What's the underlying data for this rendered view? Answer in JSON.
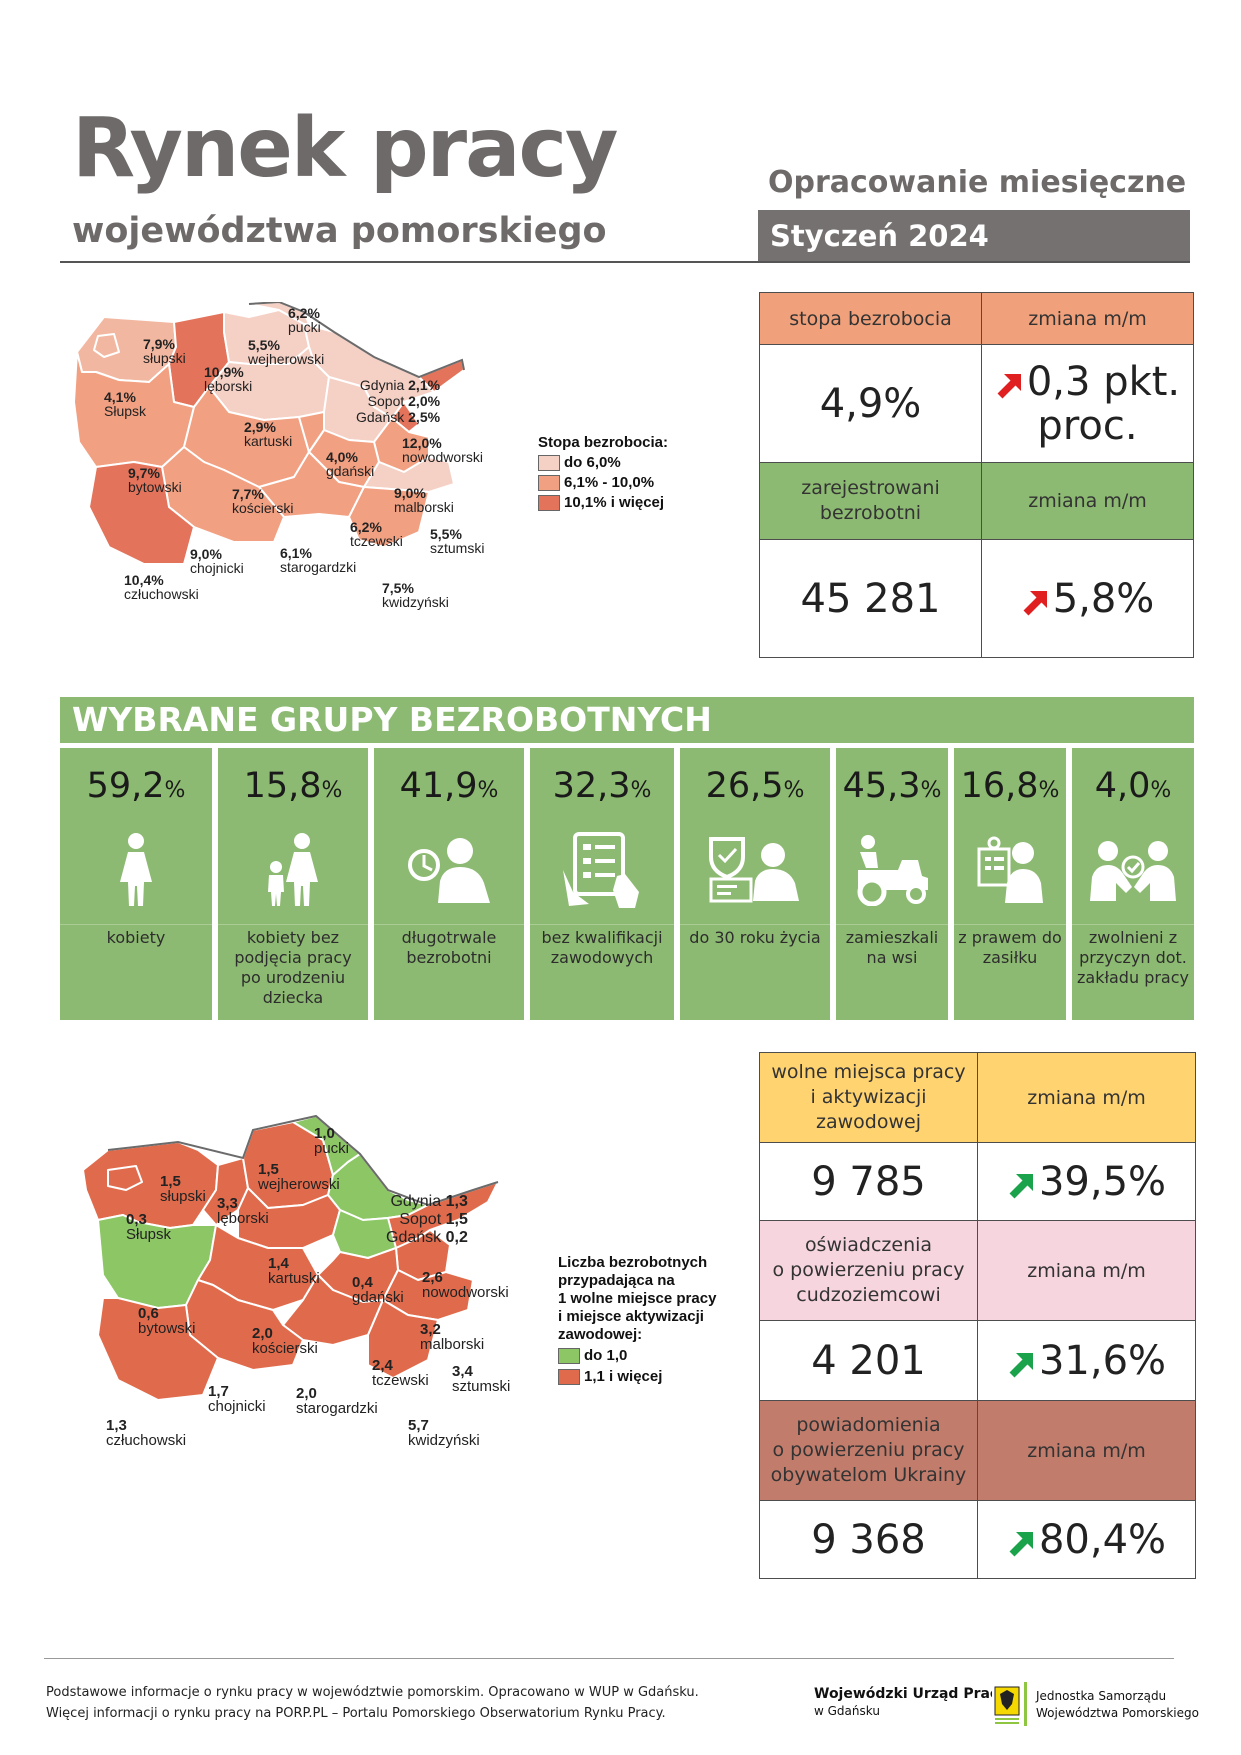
{
  "header": {
    "title": "Rynek pracy",
    "subtitle": "województwa pomorskiego",
    "report_type": "Opracowanie miesięczne",
    "period": "Styczeń 2024"
  },
  "colors": {
    "green": "#8dba72",
    "salmon": "#f0a07a",
    "grey": "#767171",
    "yellow": "#ffd370",
    "pink": "#f6d5df",
    "brown": "#c17c6c",
    "red_arrow": "#e02020",
    "green_arrow": "#1aa34a"
  },
  "kpi_top": {
    "rate_label": "stopa bezrobocia",
    "rate_value": "4,9%",
    "change_label": "zmiana m/m",
    "rate_change_line1": "0,3 pkt.",
    "rate_change_line2": "proc.",
    "registered_label_1": "zarejestrowani",
    "registered_label_2": "bezrobotni",
    "registered_value": "45 281",
    "registered_change": "5,8%"
  },
  "map1": {
    "districts": [
      {
        "value": "6,2%",
        "name": "pucki"
      },
      {
        "value": "7,9%",
        "name": "słupski"
      },
      {
        "value": "5,5%",
        "name": "wejherowski"
      },
      {
        "value": "10,9%",
        "name": "lęborski"
      },
      {
        "value": "4,1%",
        "name": "Słupsk"
      },
      {
        "value": "2,9%",
        "name": "kartuski"
      },
      {
        "value": "9,7%",
        "name": "bytowski"
      },
      {
        "value": "4,0%",
        "name": "gdański"
      },
      {
        "value": "12,0%",
        "name": "nowodworski"
      },
      {
        "value": "7,7%",
        "name": "kościerski"
      },
      {
        "value": "9,0%",
        "name": "malborski"
      },
      {
        "value": "6,2%",
        "name": "tczewski"
      },
      {
        "value": "5,5%",
        "name": "sztumski"
      },
      {
        "value": "9,0%",
        "name": "chojnicki"
      },
      {
        "value": "6,1%",
        "name": "starogardzki"
      },
      {
        "value": "10,4%",
        "name": "człuchowski"
      },
      {
        "value": "7,5%",
        "name": "kwidzyński"
      }
    ],
    "cities": [
      {
        "name": "Gdynia",
        "value": "2,1%"
      },
      {
        "name": "Sopot",
        "value": "2,0%"
      },
      {
        "name": "Gdańsk",
        "value": "2,5%"
      }
    ],
    "legend_title": "Stopa bezrobocia:",
    "legend": [
      "do 6,0%",
      "6,1% - 10,0%",
      "10,1% i więcej"
    ]
  },
  "groups_title": "WYBRANE GRUPY BEZROBOTNYCH",
  "groups": [
    {
      "value": "59,2",
      "unit": "%",
      "label": "kobiety",
      "icon": "woman-icon"
    },
    {
      "value": "15,8",
      "unit": "%",
      "label": "kobiety bez podjęcia pracy po urodzeniu dziecka",
      "icon": "mother-child-icon"
    },
    {
      "value": "41,9",
      "unit": "%",
      "label": "długotrwale bezrobotni",
      "icon": "clock-person-icon"
    },
    {
      "value": "32,3",
      "unit": "%",
      "label": "bez kwalifikacji zawodowych",
      "icon": "checklist-hand-icon"
    },
    {
      "value": "26,5",
      "unit": "%",
      "label": "do 30 roku życia",
      "icon": "young-person-computer-icon"
    },
    {
      "value": "45,3",
      "unit": "%",
      "label": "zamieszkali na wsi",
      "icon": "tractor-icon"
    },
    {
      "value": "16,8",
      "unit": "%",
      "label": "z prawem do zasiłku",
      "icon": "benefit-person-icon"
    },
    {
      "value": "4,0",
      "unit": "%",
      "label": "zwolnieni z przyczyn dot. zakładu pracy",
      "icon": "handshake-people-icon"
    }
  ],
  "map2": {
    "districts": [
      {
        "value": "1,0",
        "name": "pucki"
      },
      {
        "value": "1,5",
        "name": "słupski"
      },
      {
        "value": "1,5",
        "name": "wejherowski"
      },
      {
        "value": "3,3",
        "name": "lęborski"
      },
      {
        "value": "0,3",
        "name": "Słupsk"
      },
      {
        "value": "1,4",
        "name": "kartuski"
      },
      {
        "value": "0,4",
        "name": "gdański"
      },
      {
        "value": "2,6",
        "name": "nowodworski"
      },
      {
        "value": "0,6",
        "name": "bytowski"
      },
      {
        "value": "2,0",
        "name": "kościerski"
      },
      {
        "value": "3,2",
        "name": "malborski"
      },
      {
        "value": "2,4",
        "name": "tczewski"
      },
      {
        "value": "3,4",
        "name": "sztumski"
      },
      {
        "value": "1,7",
        "name": "chojnicki"
      },
      {
        "value": "2,0",
        "name": "starogardzki"
      },
      {
        "value": "1,3",
        "name": "człuchowski"
      },
      {
        "value": "5,7",
        "name": "kwidzyński"
      }
    ],
    "cities": [
      {
        "name": "Gdynia",
        "value": "1,3"
      },
      {
        "name": "Sopot",
        "value": "1,5"
      },
      {
        "name": "Gdańsk",
        "value": "0,2"
      }
    ],
    "legend_title": [
      "Liczba bezrobotnych",
      "przypadająca na",
      "1 wolne miejsce pracy",
      "i miejsce aktywizacji",
      "zawodowej:"
    ],
    "legend": [
      "do 1,0",
      "1,1 i więcej"
    ]
  },
  "kpi_bottom": {
    "vacancies_label_1": "wolne miejsca pracy",
    "vacancies_label_2": "i aktywizacji",
    "vacancies_label_3": "zawodowej",
    "vacancies_value": "9 785",
    "vacancies_change": "39,5%",
    "declarations_label_1": "oświadczenia",
    "declarations_label_2": "o powierzeniu pracy",
    "declarations_label_3": "cudzoziemcowi",
    "declarations_value": "4 201",
    "declarations_change": "31,6%",
    "notifications_label_1": "powiadomienia",
    "notifications_label_2": "o powierzeniu pracy",
    "notifications_label_3": "obywatelom Ukrainy",
    "notifications_value": "9 368",
    "notifications_change": "80,4%",
    "change_label": "zmiana m/m"
  },
  "footer": {
    "line1": "Podstawowe informacje o rynku pracy w województwie pomorskim. Opracowano w WUP w Gdańsku.",
    "line2": "Więcej informacji o rynku pracy na PORP.PL – Portalu Pomorskiego Obserwatorium Rynku Pracy.",
    "logo1_line1": "Wojewódzki Urząd Pracy",
    "logo1_line2": "w Gdańsku",
    "logo2_line1": "Jednostka Samorządu",
    "logo2_line2": "Województwa Pomorskiego"
  }
}
